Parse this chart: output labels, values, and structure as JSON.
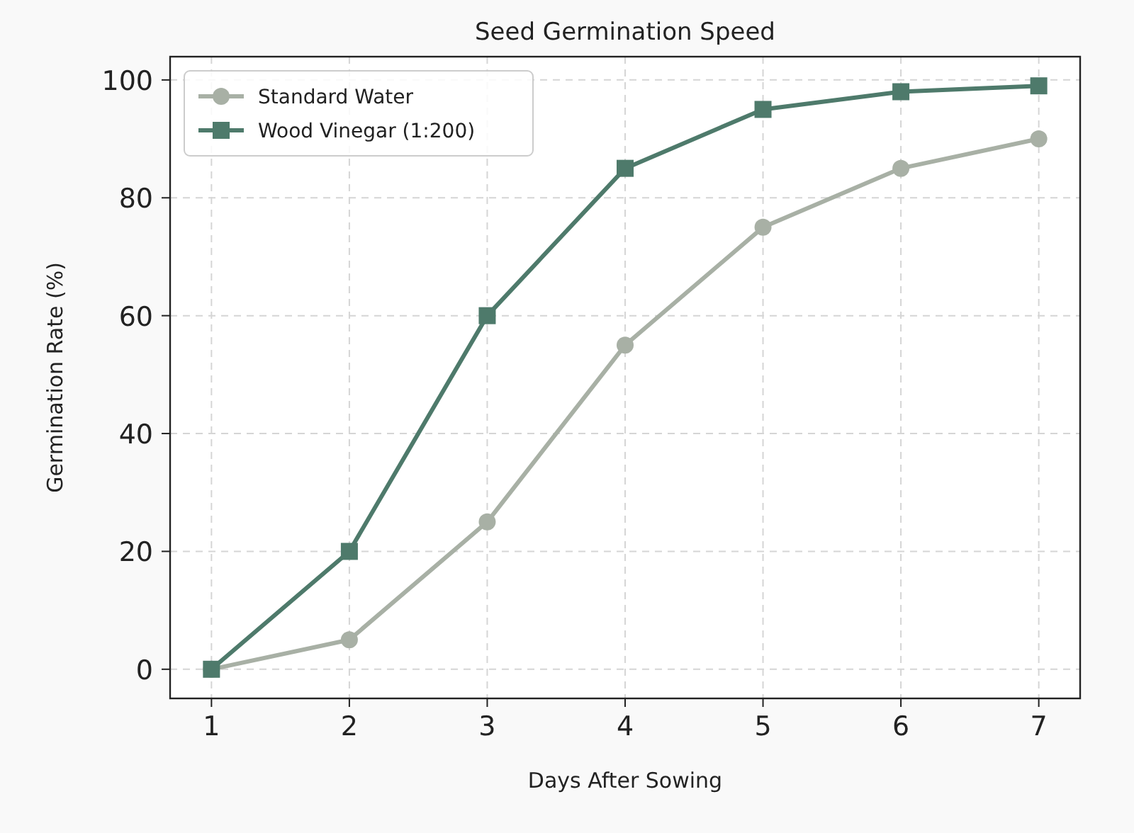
{
  "chart_data": {
    "type": "line",
    "title": "Seed Germination Speed",
    "xlabel": "Days After Sowing",
    "ylabel": "Germination Rate (%)",
    "x": [
      1,
      2,
      3,
      4,
      5,
      6,
      7
    ],
    "series": [
      {
        "name": "Standard Water",
        "color": "#a8b0a5",
        "marker": "circle",
        "values": [
          0,
          5,
          25,
          55,
          75,
          85,
          90
        ]
      },
      {
        "name": "Wood Vinegar (1:200)",
        "color": "#4e7a6b",
        "marker": "square",
        "values": [
          0,
          20,
          60,
          85,
          95,
          98,
          99
        ]
      }
    ],
    "xlim": [
      0.7,
      7.3
    ],
    "xticks": [
      1,
      2,
      3,
      4,
      5,
      6,
      7
    ],
    "ylim": [
      -4.95,
      103.95
    ],
    "yticks": [
      0,
      20,
      40,
      60,
      80,
      100
    ],
    "grid": true,
    "legend": "top left",
    "line_style": "solid"
  }
}
